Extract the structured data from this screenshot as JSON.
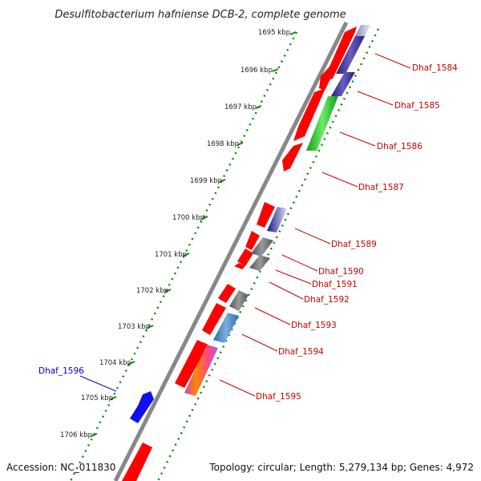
{
  "title": "Desulfitobacterium hafniense DCB-2, complete genome",
  "footer": {
    "accession": "Accession: NC_011830",
    "topology": "Topology: circular; Length: 5,279,134 bp; Genes: 4,972"
  },
  "colors": {
    "backbone": "#888888",
    "tick": "#0a8a0a",
    "red": "#ff0000",
    "navy": "#4a3d9e",
    "green": "#33cc33",
    "gray": "#777777",
    "steel": "#4a86c0",
    "blue": "#1010ee",
    "label_red": "#cc0000",
    "label_blue": "#0000cc"
  },
  "ticks": [
    "1695 kbp",
    "1696 kbp",
    "1697 kbp",
    "1698 kbp",
    "1699 kbp",
    "1700 kbp",
    "1701 kbp",
    "1702 kbp",
    "1703 kbp",
    "1704 kbp",
    "1705 kbp",
    "1706 kbp"
  ],
  "labels_right": [
    "Dhaf_1584",
    "Dhaf_1585",
    "Dhaf_1586",
    "Dhaf_1587",
    "Dhaf_1589",
    "Dhaf_1590",
    "Dhaf_1591",
    "Dhaf_1592",
    "Dhaf_1593",
    "Dhaf_1594",
    "Dhaf_1595"
  ],
  "labels_left": [
    "Dhaf_1596"
  ]
}
